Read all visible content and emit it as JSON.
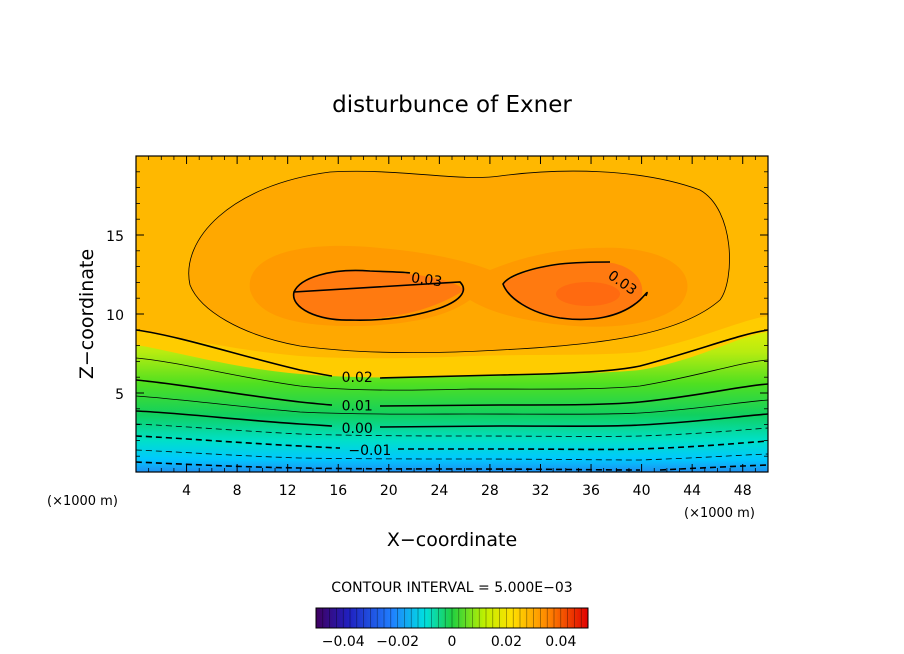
{
  "chart_data": {
    "type": "contour",
    "title": "disturbunce of Exner",
    "xlabel": "X−coordinate",
    "ylabel": "Z−coordinate",
    "x_unit_label": "(×1000 m)",
    "y_unit_label": "(×1000 m)",
    "xlim": [
      0,
      50
    ],
    "ylim": [
      0,
      20
    ],
    "x_ticks": [
      4,
      8,
      12,
      16,
      20,
      24,
      28,
      32,
      36,
      40,
      44,
      48
    ],
    "x_tick_labels": [
      "4",
      "8",
      "12",
      "16",
      "20",
      "24",
      "28",
      "32",
      "36",
      "40",
      "44",
      "48"
    ],
    "y_ticks": [
      5,
      10,
      15
    ],
    "y_tick_labels": [
      "5",
      "10",
      "15"
    ],
    "contour_interval_text": "CONTOUR INTERVAL = 5.000E−03",
    "contour_interval": 0.005,
    "labeled_contours": [
      {
        "label": "0.03",
        "value": 0.03,
        "at_x": 23,
        "at_z": 12.2
      },
      {
        "label": "0.03",
        "value": 0.03,
        "at_x": 38.5,
        "at_z": 12.0
      },
      {
        "label": "0.02",
        "value": 0.02,
        "at_x": 17.5,
        "at_z": 6.0
      },
      {
        "label": "0.01",
        "value": 0.01,
        "at_x": 17.5,
        "at_z": 4.2
      },
      {
        "label": "0.00",
        "value": 0.0,
        "at_x": 17.5,
        "at_z": 2.8
      },
      {
        "label": "−0.01",
        "value": -0.01,
        "at_x": 18.5,
        "at_z": 1.4
      }
    ],
    "colorbar": {
      "range": [
        -0.05,
        0.05
      ],
      "tick_values": [
        -0.04,
        -0.02,
        0,
        0.02,
        0.04
      ],
      "tick_labels": [
        "−0.04",
        "−0.02",
        "0",
        "0.02",
        "0.04"
      ]
    }
  }
}
